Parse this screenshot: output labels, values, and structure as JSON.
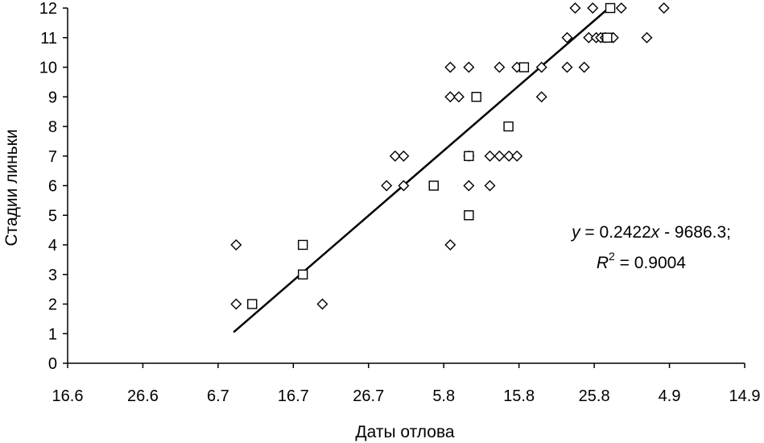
{
  "chart_data": {
    "type": "scatter",
    "xlabel": "Даты отлова",
    "ylabel": "Стадии линьки",
    "x_tick_labels": [
      "16.6",
      "26.6",
      "6.7",
      "16.7",
      "26.7",
      "5.8",
      "15.8",
      "25.8",
      "4.9",
      "14.9"
    ],
    "ylim": [
      0,
      12
    ],
    "y_ticks": [
      0,
      1,
      2,
      3,
      4,
      5,
      6,
      7,
      8,
      9,
      10,
      11,
      12
    ],
    "grid": false,
    "legend": "none",
    "series": [
      {
        "marker": "diamond",
        "points": [
          [
            33.6,
            2
          ],
          [
            33.6,
            4
          ],
          [
            50.8,
            2
          ],
          [
            63.6,
            6
          ],
          [
            65.3,
            7
          ],
          [
            67.0,
            7
          ],
          [
            67.0,
            6
          ],
          [
            76.3,
            4
          ],
          [
            76.3,
            9
          ],
          [
            76.3,
            10
          ],
          [
            78.0,
            9
          ],
          [
            80.0,
            6
          ],
          [
            80.0,
            7
          ],
          [
            80.0,
            10
          ],
          [
            84.2,
            6
          ],
          [
            84.2,
            7
          ],
          [
            86.1,
            7
          ],
          [
            86.1,
            10
          ],
          [
            88.0,
            7
          ],
          [
            89.6,
            7
          ],
          [
            89.6,
            10
          ],
          [
            94.5,
            9
          ],
          [
            94.5,
            10
          ],
          [
            99.6,
            10
          ],
          [
            99.6,
            11
          ],
          [
            101.2,
            12
          ],
          [
            103.0,
            10
          ],
          [
            103.9,
            11
          ],
          [
            104.7,
            12
          ],
          [
            105.4,
            11
          ],
          [
            106.3,
            11
          ],
          [
            107.2,
            11
          ],
          [
            108.8,
            11
          ],
          [
            110.4,
            12
          ],
          [
            115.5,
            11
          ],
          [
            118.9,
            12
          ]
        ]
      },
      {
        "marker": "square",
        "points": [
          [
            36.8,
            2
          ],
          [
            46.9,
            4
          ],
          [
            46.9,
            3
          ],
          [
            73.0,
            6
          ],
          [
            80.0,
            7
          ],
          [
            80.0,
            5
          ],
          [
            81.5,
            9
          ],
          [
            87.9,
            8
          ],
          [
            91.0,
            10
          ],
          [
            107.6,
            11
          ],
          [
            108.2,
            12
          ]
        ]
      }
    ],
    "trendline": {
      "equation": "y = 0.2422x - 9686.3;",
      "r_squared": "R² = 0.9004",
      "from": [
        33.1,
        1.05
      ],
      "to": [
        107.9,
        12
      ]
    }
  },
  "annotation": {
    "eq_y": "y",
    "eq_rest": " = 0.2422",
    "eq_x": "x",
    "eq_tail": " - 9686.3;",
    "r_R": "R",
    "r_sup": "2",
    "r_rest": " = 0.9004"
  }
}
